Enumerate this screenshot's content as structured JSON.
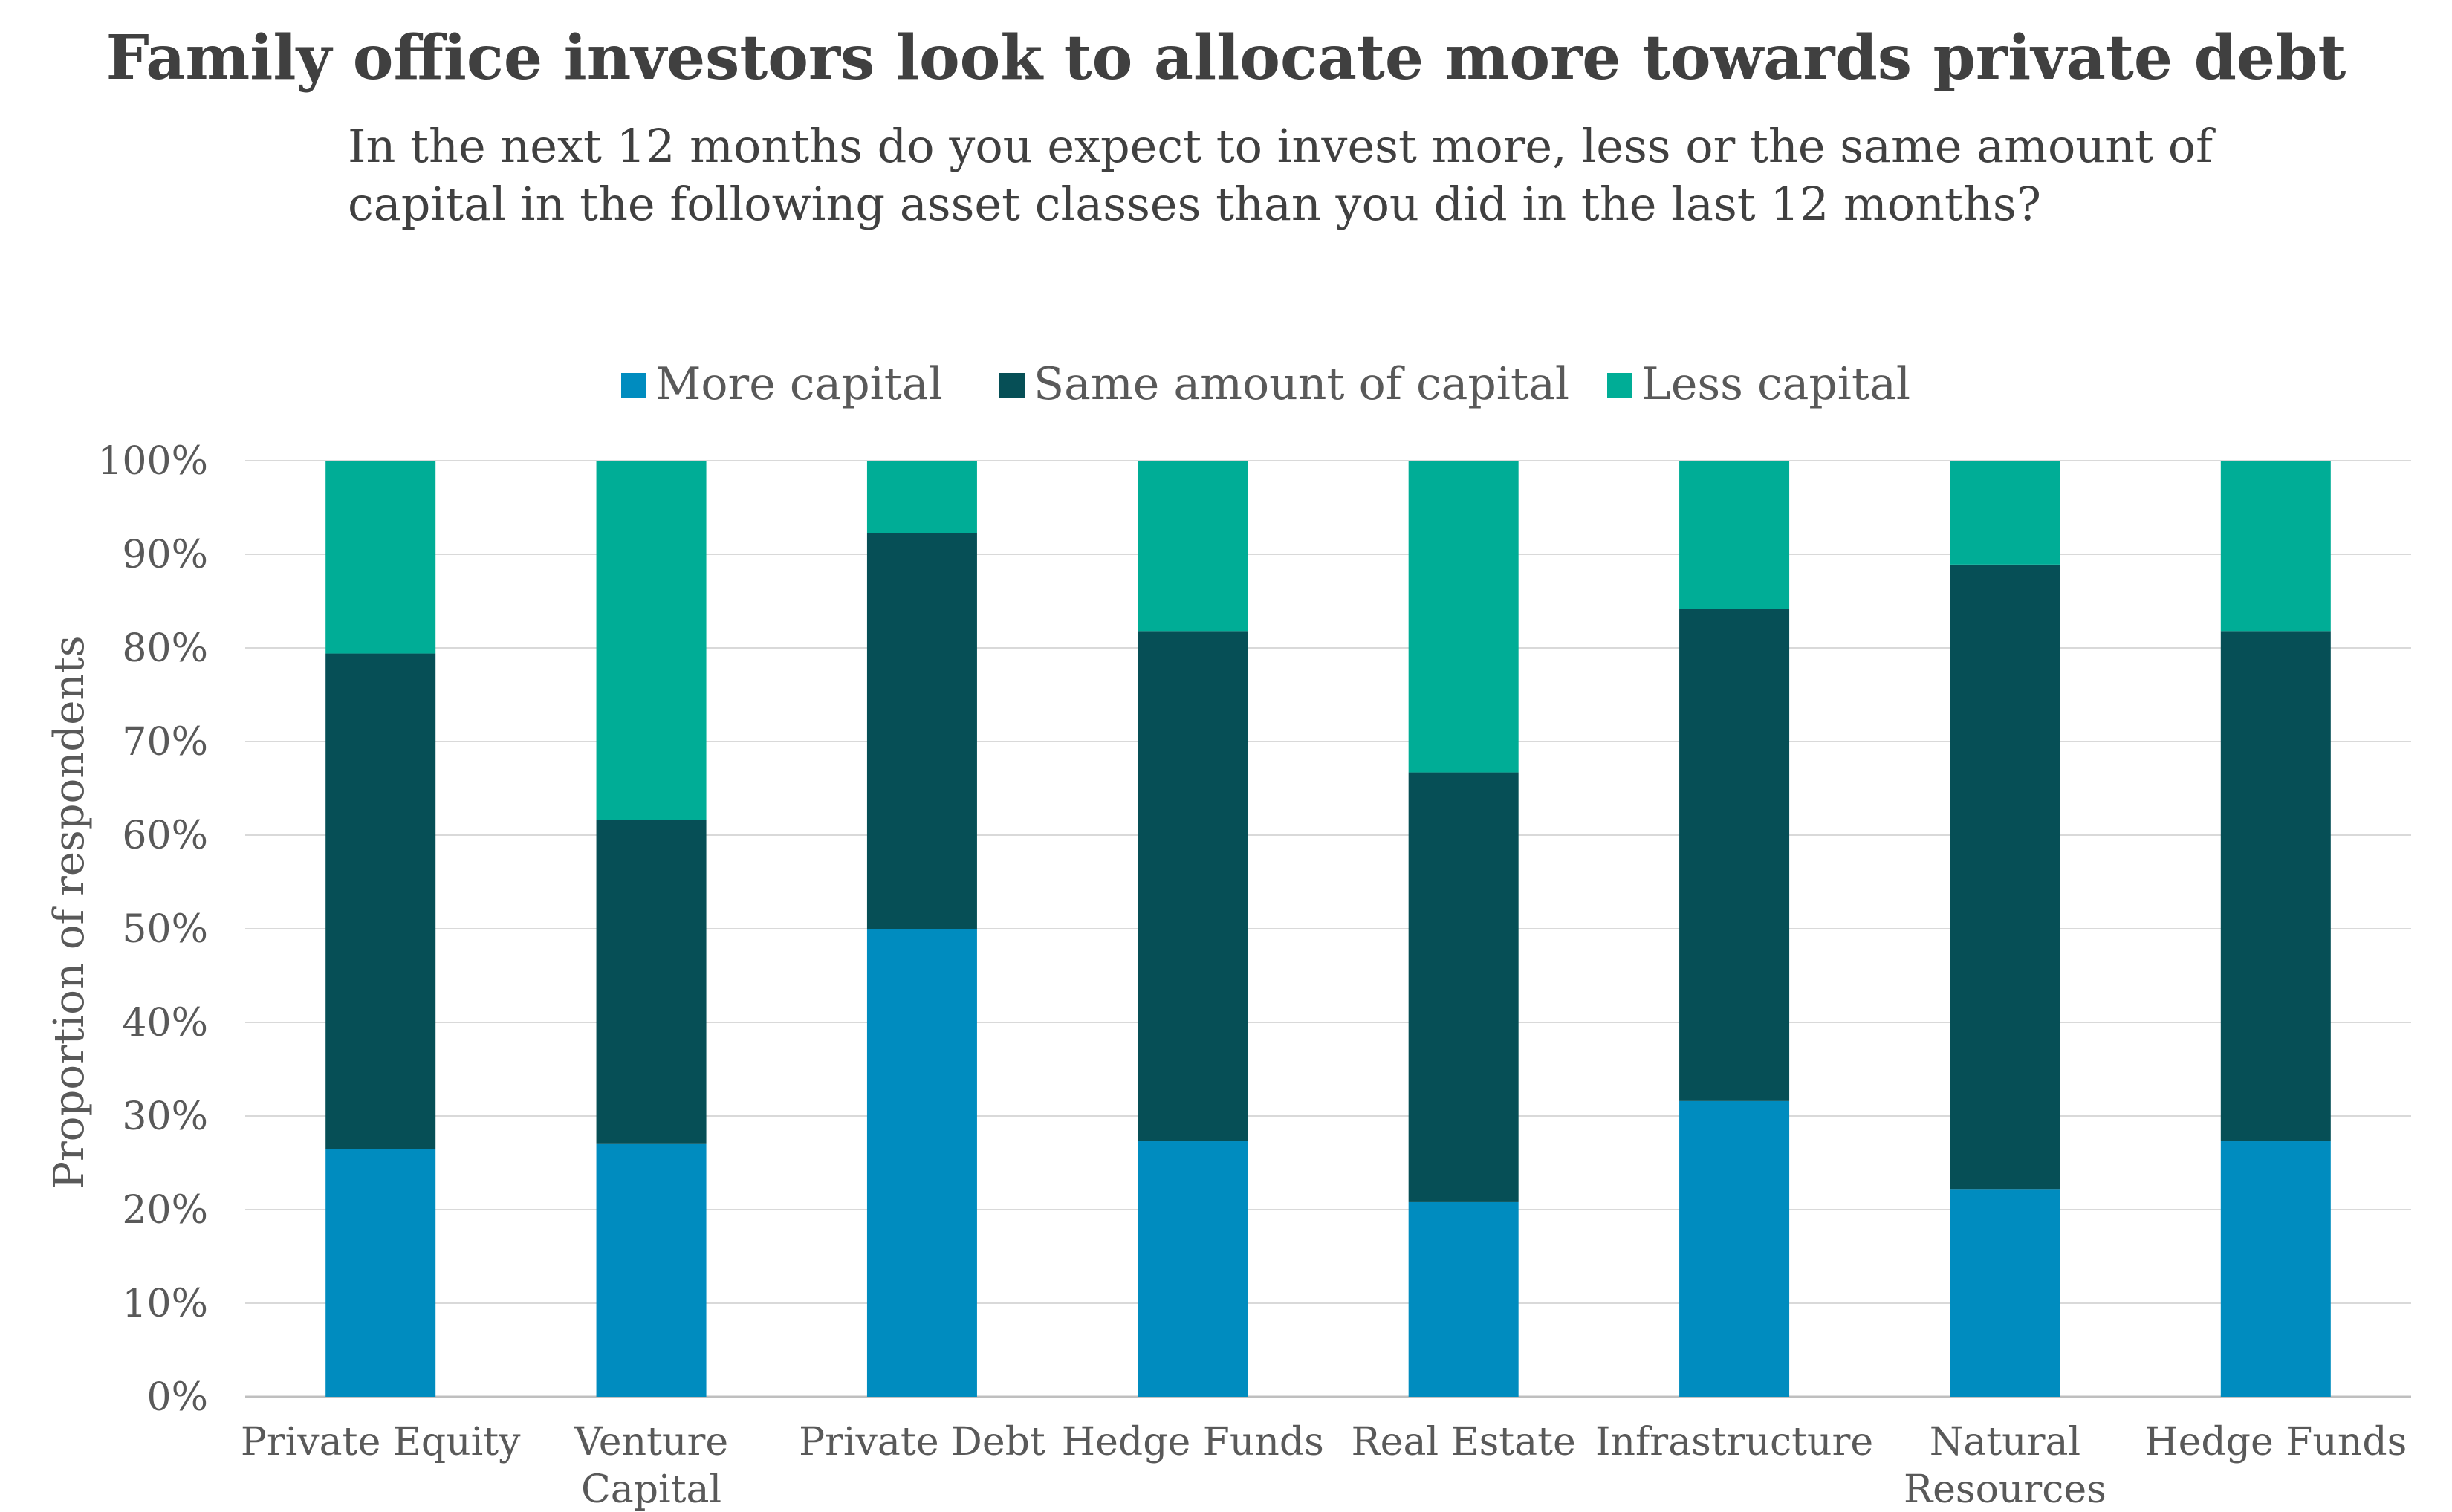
{
  "title": "Family office investors look to allocate more towards private debt",
  "subtitle": {
    "line1": "In the next 12 months do you expect to invest more, less or the same amount of",
    "line2": "capital in the following asset classes than you did in the last 12 months?"
  },
  "chart_data": {
    "type": "bar",
    "stacked": true,
    "categories": [
      [
        "Private Equity"
      ],
      [
        "Venture",
        "Capital"
      ],
      [
        "Private Debt"
      ],
      [
        "Hedge Funds"
      ],
      [
        "Real Estate"
      ],
      [
        "Infrastructure"
      ],
      [
        "Natural",
        "Resources"
      ],
      [
        "Hedge Funds"
      ]
    ],
    "series": [
      {
        "name": "More capital",
        "color": "#008CBF",
        "values": [
          26.5,
          27,
          50,
          27.3,
          20.8,
          31.6,
          22.2,
          27.3
        ]
      },
      {
        "name": "Same amount of capital",
        "color": "#064F56",
        "values": [
          52.9,
          34.6,
          42.3,
          54.5,
          45.9,
          52.6,
          66.7,
          54.5
        ]
      },
      {
        "name": "Less capital",
        "color": "#00AD96",
        "values": [
          20.6,
          38.4,
          7.7,
          18.2,
          33.3,
          15.8,
          11.1,
          18.2
        ]
      }
    ],
    "ylabel": "Proportion of respondents",
    "xlabel": "",
    "ylim": [
      0,
      100
    ],
    "yticks": [
      "0%",
      "10%",
      "20%",
      "30%",
      "40%",
      "50%",
      "60%",
      "70%",
      "80%",
      "90%",
      "100%"
    ],
    "grid": true,
    "legend": "top-center"
  }
}
